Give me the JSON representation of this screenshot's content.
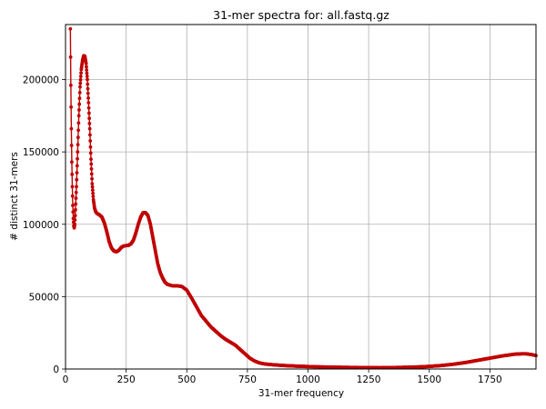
{
  "chart_data": {
    "type": "line",
    "title": "31-mer spectra for: all.fastq.gz",
    "xlabel": "31-mer frequency",
    "ylabel": "# distinct 31-mers",
    "xlim": [
      0,
      1940
    ],
    "ylim": [
      0,
      238000
    ],
    "xticks": [
      0,
      250,
      500,
      750,
      1000,
      1250,
      1500,
      1750
    ],
    "yticks": [
      0,
      50000,
      100000,
      150000,
      200000
    ],
    "xtick_labels": [
      "0",
      "250",
      "500",
      "750",
      "1000",
      "1250",
      "1500",
      "1750"
    ],
    "ytick_labels": [
      "0",
      "50000",
      "100000",
      "150000",
      "200000"
    ],
    "grid": true,
    "series_color": "#c00000",
    "series": [
      {
        "values_knots": [
          [
            20,
            235000
          ],
          [
            22,
            196000
          ],
          [
            24,
            166000
          ],
          [
            26,
            143000
          ],
          [
            28,
            126000
          ],
          [
            30,
            113000
          ],
          [
            32,
            104000
          ],
          [
            34,
            99000
          ],
          [
            36,
            97500
          ],
          [
            38,
            100000
          ],
          [
            40,
            106000
          ],
          [
            45,
            126000
          ],
          [
            50,
            150000
          ],
          [
            55,
            175000
          ],
          [
            60,
            195000
          ],
          [
            65,
            207000
          ],
          [
            70,
            213000
          ],
          [
            75,
            216500
          ],
          [
            80,
            216000
          ],
          [
            85,
            211000
          ],
          [
            90,
            200000
          ],
          [
            95,
            184000
          ],
          [
            100,
            166000
          ],
          [
            105,
            145000
          ],
          [
            110,
            128000
          ],
          [
            115,
            117000
          ],
          [
            120,
            111000
          ],
          [
            125,
            108500
          ],
          [
            130,
            107500
          ],
          [
            135,
            107000
          ],
          [
            140,
            106500
          ],
          [
            150,
            105000
          ],
          [
            160,
            101000
          ],
          [
            170,
            95000
          ],
          [
            180,
            88000
          ],
          [
            190,
            83500
          ],
          [
            200,
            81500
          ],
          [
            210,
            81000
          ],
          [
            220,
            82000
          ],
          [
            230,
            84000
          ],
          [
            240,
            85000
          ],
          [
            260,
            85500
          ],
          [
            270,
            86500
          ],
          [
            280,
            89000
          ],
          [
            290,
            94000
          ],
          [
            300,
            100000
          ],
          [
            310,
            105000
          ],
          [
            320,
            108000
          ],
          [
            330,
            108000
          ],
          [
            340,
            106000
          ],
          [
            350,
            100000
          ],
          [
            360,
            91000
          ],
          [
            370,
            82000
          ],
          [
            380,
            73000
          ],
          [
            390,
            67000
          ],
          [
            400,
            63000
          ],
          [
            410,
            60000
          ],
          [
            420,
            58500
          ],
          [
            440,
            57500
          ],
          [
            460,
            57500
          ],
          [
            480,
            57000
          ],
          [
            500,
            54500
          ],
          [
            520,
            49000
          ],
          [
            540,
            43000
          ],
          [
            560,
            37000
          ],
          [
            580,
            33000
          ],
          [
            600,
            29000
          ],
          [
            620,
            26000
          ],
          [
            640,
            23000
          ],
          [
            660,
            20500
          ],
          [
            680,
            18500
          ],
          [
            700,
            16500
          ],
          [
            720,
            13500
          ],
          [
            740,
            10500
          ],
          [
            760,
            7500
          ],
          [
            780,
            5500
          ],
          [
            800,
            4200
          ],
          [
            820,
            3500
          ],
          [
            850,
            3000
          ],
          [
            900,
            2400
          ],
          [
            950,
            2000
          ],
          [
            1000,
            1700
          ],
          [
            1100,
            1300
          ],
          [
            1200,
            1050
          ],
          [
            1300,
            950
          ],
          [
            1350,
            1000
          ],
          [
            1400,
            1150
          ],
          [
            1450,
            1400
          ],
          [
            1500,
            1800
          ],
          [
            1550,
            2400
          ],
          [
            1600,
            3300
          ],
          [
            1650,
            4500
          ],
          [
            1700,
            6000
          ],
          [
            1750,
            7500
          ],
          [
            1800,
            9000
          ],
          [
            1850,
            10200
          ],
          [
            1880,
            10500
          ],
          [
            1900,
            10500
          ],
          [
            1920,
            10000
          ],
          [
            1940,
            9300
          ]
        ]
      }
    ]
  }
}
